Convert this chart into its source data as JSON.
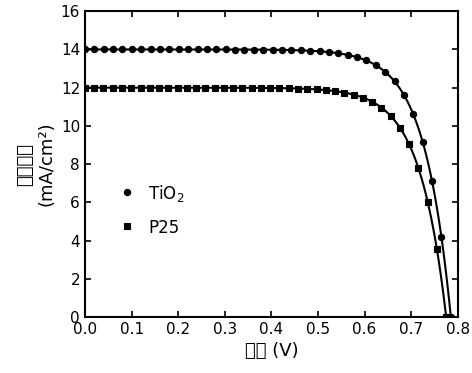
{
  "xlabel": "电压 (V)",
  "ylabel": "电流密度（mA/cm²）",
  "xlim": [
    0.0,
    0.8
  ],
  "ylim": [
    0,
    16
  ],
  "yticks": [
    0,
    2,
    4,
    6,
    8,
    10,
    12,
    14,
    16
  ],
  "xticks": [
    0.0,
    0.1,
    0.2,
    0.3,
    0.4,
    0.5,
    0.6,
    0.7,
    0.8
  ],
  "series": [
    {
      "label": "TiO$_2$",
      "color": "#000000",
      "marker": "o",
      "markersize": 4.5,
      "isc": 14.0,
      "voc": 0.785,
      "ff_knee": 0.48,
      "ff_exp": 4.5
    },
    {
      "label": "P25",
      "color": "#000000",
      "marker": "s",
      "markersize": 4.0,
      "isc": 12.0,
      "voc": 0.775,
      "ff_knee": 0.45,
      "ff_exp": 4.2
    }
  ],
  "background_color": "#ffffff",
  "linewidth": 1.5,
  "n_markers": 40,
  "legend_fontsize": 12,
  "axis_fontsize": 13,
  "tick_fontsize": 11
}
